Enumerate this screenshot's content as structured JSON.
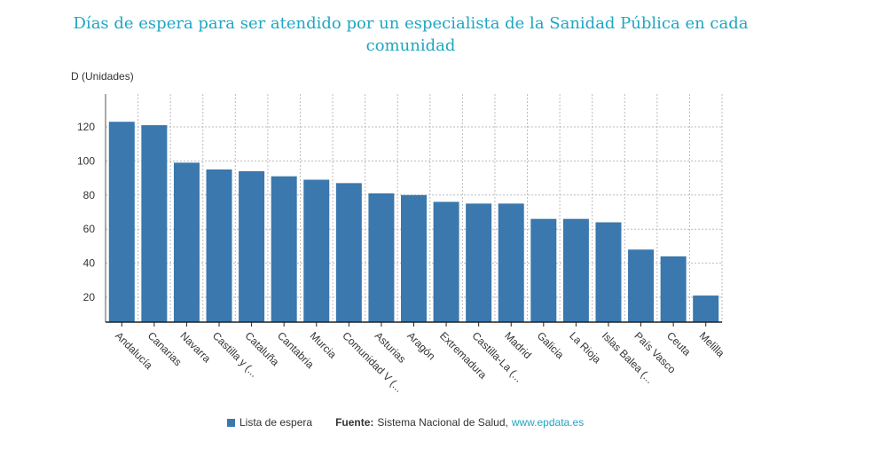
{
  "title": "Días de espera para ser atendido por un especialista de la Sanidad Pública en cada comunidad",
  "colors": {
    "bar": "#3a78ae",
    "title": "#1fa6c2",
    "link": "#1fa6c2",
    "grid": "#bbbbbb",
    "text": "#333333"
  },
  "legend": {
    "label": "Lista de espera"
  },
  "source": {
    "prefix": "Fuente:",
    "text": "Sistema Nacional de Salud,",
    "link": "www.epdata.es"
  },
  "chart_data": {
    "type": "bar",
    "ylabel": "D (Unidades)",
    "xlabel": "",
    "ylim": [
      5,
      120
    ],
    "yticks": [
      20,
      40,
      60,
      80,
      100,
      120
    ],
    "grid": true,
    "legend_position": "bottom",
    "categories": [
      "Andalucía",
      "Canarias",
      "Navarra",
      "Castilla y (...",
      "Cataluña",
      "Cantabria",
      "Murcia",
      "Comunidad V (...",
      "Asturias",
      "Aragón",
      "Extremadura",
      "Castilla-La (...",
      "Madrid",
      "Galicia",
      "La Rioja",
      "Islas Balea (...",
      "País Vasco",
      "Ceuta",
      "Melilla"
    ],
    "series": [
      {
        "name": "Lista de espera",
        "values": [
          123,
          121,
          99,
          95,
          94,
          91,
          89,
          87,
          81,
          80,
          76,
          75,
          75,
          66,
          66,
          64,
          48,
          44,
          21
        ]
      }
    ]
  }
}
